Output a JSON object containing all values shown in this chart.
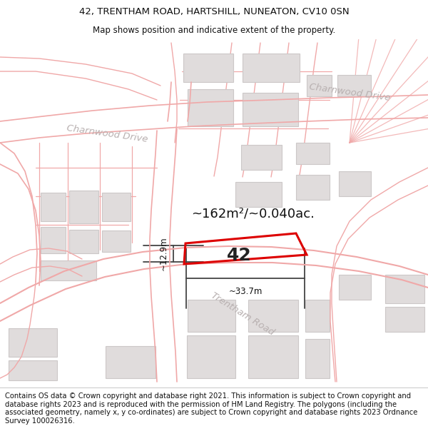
{
  "title_line1": "42, TRENTHAM ROAD, HARTSHILL, NUNEATON, CV10 0SN",
  "title_line2": "Map shows position and indicative extent of the property.",
  "footer_text": "Contains OS data © Crown copyright and database right 2021. This information is subject to Crown copyright and database rights 2023 and is reproduced with the permission of HM Land Registry. The polygons (including the associated geometry, namely x, y co-ordinates) are subject to Crown copyright and database rights 2023 Ordnance Survey 100026316.",
  "area_label": "~162m²/~0.040ac.",
  "plot_number": "42",
  "width_label": "~33.7m",
  "height_label": "~12.9m",
  "map_bg": "#f7f4f4",
  "road_line_color": "#f0a8a8",
  "building_fill": "#e0dcdc",
  "building_edge": "#ccc8c8",
  "highlight_color": "#dd0000",
  "road_label_color": "#b8b0b0",
  "text_color": "#111111",
  "dim_line_color": "#444444",
  "title_fontsize": 9.5,
  "subtitle_fontsize": 8.5,
  "footer_fontsize": 7.2,
  "area_fontsize": 13,
  "plot_label_fontsize": 18,
  "dim_fontsize": 8.5,
  "road_label_fontsize": 9.5
}
